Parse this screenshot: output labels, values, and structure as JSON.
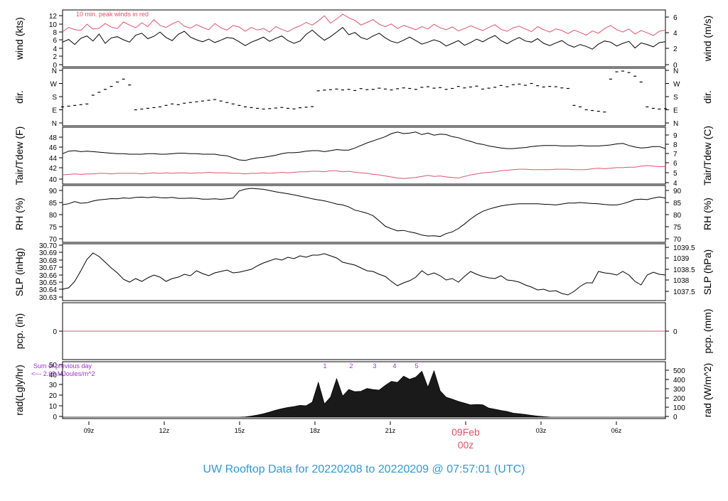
{
  "title": "UW Rooftop Data for 20220208  to  20220209 @ 07:57:01  (UTC)",
  "colors": {
    "line": "#000000",
    "dewpoint": "#df536b",
    "annotation": "#9933cc",
    "title": "#2d9ad8",
    "frame": "#000000"
  },
  "x_axis": {
    "ticks": [
      "09z",
      "12z",
      "15z",
      "18z",
      "21z",
      "00z",
      "03z",
      "06z"
    ],
    "date_label": "09Feb",
    "date_sub": "00z"
  },
  "chart_data": [
    {
      "type": "line",
      "id": "wind",
      "ylabel_left": "wind (kts)",
      "ylabel_right": "wind (m/s)",
      "left_ticks": [
        "0",
        "2",
        "4",
        "6",
        "8",
        "10",
        "12"
      ],
      "right_ticks": [
        "0",
        "2",
        "4",
        "6"
      ],
      "annotation": "10 min. peak winds in red",
      "ylim": [
        0,
        13
      ],
      "series": [
        {
          "color": "#000000",
          "values": [
            5.8,
            6.5,
            5.2,
            6.8,
            7.4,
            6.1,
            7.9,
            5.5,
            6.9,
            7.2,
            6.4,
            5.8,
            7.6,
            8.1,
            6.7,
            7.3,
            8.4,
            7.0,
            6.2,
            7.8,
            8.6,
            7.1,
            6.4,
            5.9,
            6.6,
            5.7,
            6.3,
            7.0,
            6.8,
            5.9,
            4.9,
            5.8,
            6.4,
            7.1,
            6.0,
            6.8,
            7.4,
            6.2,
            5.5,
            6.1,
            7.8,
            8.9,
            7.5,
            6.3,
            7.2,
            8.4,
            9.6,
            7.7,
            8.3,
            7.0,
            6.5,
            7.4,
            8.1,
            6.9,
            6.0,
            5.6,
            6.3,
            7.1,
            6.2,
            5.3,
            5.8,
            6.4,
            5.9,
            4.8,
            5.5,
            6.2,
            5.0,
            5.7,
            6.6,
            5.9,
            6.8,
            7.5,
            6.2,
            5.4,
            6.3,
            7.0,
            6.1,
            5.8,
            6.7,
            5.5,
            4.9,
            5.6,
            6.2,
            5.1,
            4.5,
            5.2,
            4.7,
            4.0,
            5.3,
            6.1,
            5.8,
            4.8,
            5.5,
            6.0,
            4.3,
            5.6,
            5.2,
            4.6,
            5.7,
            5.9
          ]
        },
        {
          "color": "#df536b",
          "values": [
            8.5,
            9.6,
            9.0,
            8.8,
            10.4,
            9.2,
            9.4,
            10.6,
            9.7,
            9.3,
            11.0,
            10.2,
            9.5,
            10.8,
            9.8,
            11.6,
            10.1,
            9.6,
            10.5,
            11.2,
            9.9,
            9.4,
            10.3,
            9.6,
            9.0,
            10.6,
            9.5,
            8.9,
            10.1,
            9.7,
            8.6,
            9.6,
            8.9,
            9.3,
            8.4,
            9.8,
            9.1,
            8.5,
            9.4,
            10.0,
            10.9,
            10.2,
            11.3,
            12.6,
            10.7,
            11.8,
            13.0,
            12.1,
            11.4,
            10.2,
            10.9,
            11.6,
            10.4,
            9.8,
            10.5,
            9.3,
            10.1,
            9.6,
            9.0,
            9.8,
            9.2,
            10.4,
            9.5,
            9.0,
            9.7,
            8.7,
            9.3,
            10.0,
            9.4,
            8.8,
            9.6,
            10.3,
            9.1,
            8.6,
            9.5,
            9.9,
            9.2,
            8.5,
            9.8,
            9.0,
            8.4,
            9.2,
            8.8,
            8.0,
            8.9,
            8.3,
            7.6,
            8.7,
            8.1,
            9.3,
            10.1,
            9.0,
            8.4,
            9.2,
            7.9,
            8.8,
            8.2,
            7.5,
            8.6,
            8.9
          ]
        }
      ]
    },
    {
      "type": "scatter",
      "id": "dir",
      "ylabel_left": "dir.",
      "ylabel_right": "dir.",
      "left_ticks": [
        "N",
        "E",
        "S",
        "W",
        "N"
      ],
      "right_ticks": [
        "N",
        "E",
        "S",
        "W",
        "N"
      ],
      "ylim": [
        0,
        360
      ],
      "series": [
        {
          "color": "#000000",
          "values": [
            110,
            115,
            120,
            125,
            130,
            190,
            210,
            230,
            250,
            280,
            300,
            260,
            90,
            95,
            100,
            105,
            110,
            120,
            130,
            125,
            135,
            140,
            145,
            150,
            155,
            160,
            150,
            140,
            130,
            120,
            110,
            105,
            100,
            95,
            98,
            102,
            106,
            100,
            96,
            104,
            108,
            112,
            220,
            225,
            228,
            232,
            226,
            230,
            222,
            235,
            228,
            230,
            238,
            232,
            226,
            234,
            240,
            236,
            230,
            244,
            248,
            238,
            242,
            230,
            236,
            250,
            240,
            246,
            252,
            232,
            238,
            244,
            256,
            248,
            262,
            266,
            258,
            270,
            255,
            246,
            250,
            248,
            240,
            236,
            120,
            110,
            90,
            85,
            80,
            75,
            300,
            350,
            355,
            345,
            320,
            280,
            110,
            100,
            95,
            98
          ]
        }
      ]
    },
    {
      "type": "line",
      "id": "temp",
      "ylabel_left": "Tair/Tdew (F)",
      "ylabel_right": "Tair/Tdew (C)",
      "left_ticks": [
        "40",
        "42",
        "44",
        "46",
        "48"
      ],
      "right_ticks": [
        "4",
        "5",
        "6",
        "7",
        "8",
        "9"
      ],
      "ylim": [
        39.4,
        50.0
      ],
      "series": [
        {
          "color": "#000000",
          "values": [
            45.0,
            45.5,
            45.6,
            45.4,
            45.5,
            45.4,
            45.3,
            45.2,
            45.1,
            45.0,
            45.0,
            44.9,
            44.9,
            44.9,
            45.0,
            45.0,
            44.9,
            44.9,
            45.0,
            45.1,
            45.1,
            45.0,
            45.0,
            44.9,
            44.9,
            44.9,
            44.7,
            44.6,
            44.2,
            43.8,
            43.7,
            44.0,
            44.2,
            44.3,
            44.5,
            44.7,
            45.0,
            45.2,
            45.2,
            45.3,
            45.5,
            45.6,
            45.6,
            45.4,
            45.6,
            45.8,
            45.7,
            45.7,
            46.1,
            46.6,
            47.1,
            47.5,
            47.9,
            48.3,
            48.9,
            49.2,
            48.9,
            49.0,
            49.2,
            48.7,
            49.0,
            48.6,
            48.8,
            48.7,
            48.3,
            48.1,
            47.7,
            47.4,
            47.0,
            46.8,
            46.5,
            46.3,
            46.1,
            46.0,
            46.0,
            46.1,
            46.2,
            46.4,
            46.5,
            46.6,
            46.6,
            46.6,
            46.5,
            46.5,
            46.5,
            46.6,
            46.5,
            46.5,
            46.5,
            46.6,
            46.7,
            46.9,
            47.0,
            46.6,
            46.3,
            46.1,
            46.2,
            46.4,
            46.4,
            46.0
          ]
        },
        {
          "color": "#df536b",
          "values": [
            40.9,
            41.0,
            41.1,
            41.0,
            41.1,
            41.1,
            41.2,
            41.2,
            41.1,
            41.2,
            41.2,
            41.2,
            41.2,
            41.1,
            41.2,
            41.3,
            41.2,
            41.3,
            41.2,
            41.3,
            41.3,
            41.2,
            41.3,
            41.3,
            41.4,
            41.3,
            41.3,
            41.3,
            41.2,
            41.2,
            41.1,
            41.2,
            41.2,
            41.3,
            41.2,
            41.3,
            41.4,
            41.3,
            41.4,
            41.5,
            41.5,
            41.6,
            41.6,
            41.5,
            41.7,
            41.7,
            41.5,
            41.6,
            41.4,
            41.3,
            41.2,
            41.0,
            40.9,
            40.7,
            40.5,
            40.3,
            40.2,
            40.3,
            40.4,
            40.6,
            40.8,
            40.6,
            40.7,
            40.5,
            40.4,
            40.3,
            40.6,
            40.9,
            41.1,
            41.3,
            41.4,
            41.5,
            41.7,
            41.8,
            41.9,
            42.0,
            42.0,
            41.9,
            41.9,
            41.9,
            41.9,
            42.0,
            42.0,
            42.0,
            41.9,
            41.9,
            41.9,
            42.1,
            42.2,
            42.1,
            42.2,
            42.3,
            42.3,
            42.4,
            42.4,
            42.6,
            42.7,
            42.6,
            42.5,
            42.5
          ]
        }
      ]
    },
    {
      "type": "line",
      "id": "rh",
      "ylabel_left": "RH (%)",
      "ylabel_right": "RH (%)",
      "left_ticks": [
        "70",
        "75",
        "80",
        "85",
        "90"
      ],
      "right_ticks": [
        "70",
        "75",
        "80",
        "85",
        "90"
      ],
      "ylim": [
        69.5,
        91.0
      ],
      "series": [
        {
          "color": "#000000",
          "values": [
            84.0,
            84.4,
            85.3,
            84.6,
            84.8,
            85.5,
            86.0,
            86.2,
            86.5,
            86.4,
            86.8,
            86.6,
            87.0,
            87.1,
            86.9,
            87.2,
            86.9,
            86.8,
            87.0,
            86.6,
            86.6,
            86.7,
            86.6,
            86.3,
            86.3,
            86.4,
            86.2,
            86.4,
            86.7,
            89.6,
            90.4,
            90.7,
            90.5,
            90.3,
            89.8,
            89.3,
            88.9,
            88.5,
            88.0,
            87.5,
            87.0,
            86.4,
            86.0,
            85.6,
            85.0,
            84.3,
            83.9,
            83.1,
            81.8,
            81.2,
            80.5,
            79.5,
            77.4,
            75.2,
            74.2,
            73.3,
            73.5,
            72.9,
            72.4,
            71.6,
            71.2,
            71.3,
            71.0,
            72.2,
            72.9,
            74.3,
            76.1,
            78.2,
            79.9,
            81.3,
            82.2,
            82.9,
            83.5,
            83.9,
            84.2,
            84.4,
            84.4,
            84.4,
            84.4,
            84.2,
            84.1,
            83.9,
            84.3,
            84.7,
            84.7,
            84.9,
            84.7,
            84.5,
            84.4,
            84.1,
            83.9,
            83.9,
            84.4,
            85.2,
            86.1,
            86.3,
            86.1,
            86.7,
            87.2,
            86.7
          ]
        }
      ]
    },
    {
      "type": "line",
      "id": "slp",
      "ylabel_left": "SLP (inHg)",
      "ylabel_right": "SLP (hPa)",
      "left_ticks": [
        "30.63",
        "30.64",
        "30.65",
        "30.66",
        "30.67",
        "30.68",
        "30.69",
        "30.70"
      ],
      "right_ticks": [
        "1037.5",
        "1038",
        "1038.5",
        "1039",
        "1039.5"
      ],
      "ylim": [
        30.627,
        30.703
      ],
      "series": [
        {
          "color": "#000000",
          "values": [
            30.641,
            30.643,
            30.652,
            30.667,
            30.683,
            30.692,
            30.687,
            30.679,
            30.671,
            30.664,
            30.655,
            30.651,
            30.656,
            30.652,
            30.657,
            30.661,
            30.658,
            30.652,
            30.656,
            30.658,
            30.662,
            30.66,
            30.667,
            30.663,
            30.66,
            30.664,
            30.666,
            30.668,
            30.664,
            30.665,
            30.667,
            30.669,
            30.674,
            30.678,
            30.681,
            30.684,
            30.682,
            30.686,
            30.684,
            30.688,
            30.686,
            30.689,
            30.689,
            30.691,
            30.688,
            30.685,
            30.679,
            30.677,
            30.675,
            30.671,
            30.667,
            30.666,
            30.662,
            30.659,
            30.652,
            30.646,
            30.65,
            30.653,
            30.658,
            30.667,
            30.661,
            30.664,
            30.66,
            30.654,
            30.656,
            30.651,
            30.659,
            30.666,
            30.662,
            30.659,
            30.657,
            30.656,
            30.66,
            30.654,
            30.653,
            30.651,
            30.647,
            30.644,
            30.64,
            30.641,
            30.638,
            30.639,
            30.635,
            30.633,
            30.638,
            30.645,
            30.65,
            30.65,
            30.666,
            30.664,
            30.663,
            30.661,
            30.666,
            30.661,
            30.652,
            30.647,
            30.661,
            30.665,
            30.662,
            30.661
          ]
        }
      ]
    },
    {
      "type": "line",
      "id": "pcp",
      "ylabel_left": "pcp. (in)",
      "ylabel_right": "pcp. (mm)",
      "left_ticks": [
        "0"
      ],
      "right_ticks": [
        "0"
      ],
      "ylim": [
        -1,
        1
      ],
      "series": [
        {
          "color": "#df536b",
          "values": [
            0,
            0
          ]
        }
      ]
    },
    {
      "type": "area",
      "id": "rad",
      "ylabel_left": "rad(Lgly/hr)",
      "ylabel_right": "rad (W/m^2)",
      "left_ticks": [
        "0",
        "10",
        "20",
        "30",
        "40",
        "50"
      ],
      "right_ticks": [
        "0",
        "100",
        "200",
        "300",
        "400",
        "500"
      ],
      "ylim": [
        0,
        50
      ],
      "annotation_lines": [
        "Sum of previous day",
        "<--- 2.65 MJoules/m^2"
      ],
      "peak_labels": [
        "1",
        "2",
        "3",
        "4",
        "5"
      ],
      "series": [
        {
          "color": "#000000",
          "values": [
            0,
            0,
            0,
            0,
            0,
            0,
            0,
            0,
            0,
            0,
            0,
            0,
            0,
            0,
            0,
            0,
            0,
            0,
            0,
            0,
            0,
            0,
            0,
            0,
            0,
            0,
            0,
            0,
            0,
            0,
            0.3,
            1.0,
            2.0,
            3.2,
            4.8,
            6.6,
            8.0,
            9.2,
            10.1,
            11.2,
            10.8,
            14.2,
            33.0,
            12.5,
            19.0,
            36.5,
            20.0,
            26.3,
            24.2,
            24.6,
            27.2,
            26.3,
            25.7,
            30.2,
            34.0,
            33.0,
            38.9,
            36.0,
            38.0,
            43.6,
            28.4,
            44.0,
            25.0,
            18.9,
            17.1,
            14.9,
            13.4,
            11.6,
            12.1,
            11.7,
            8.6,
            7.5,
            6.3,
            5.4,
            3.8,
            3.2,
            2.5,
            1.7,
            1.0,
            0.5,
            0.1,
            0,
            0,
            0,
            0,
            0,
            0,
            0,
            0,
            0,
            0,
            0,
            0,
            0,
            0,
            0,
            0,
            0,
            0,
            0
          ]
        }
      ]
    }
  ]
}
